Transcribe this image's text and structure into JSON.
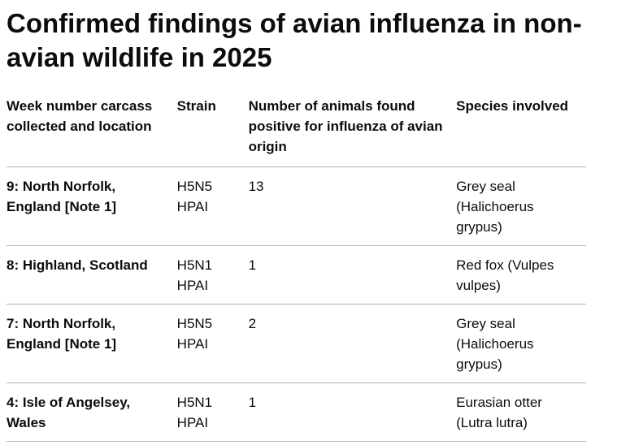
{
  "title": "Confirmed findings of avian influenza in non-avian wildlife in 2025",
  "table": {
    "headers": [
      "Week number carcass collected and location",
      "Strain",
      "Number of animals found positive for influenza of avian origin",
      "Species involved"
    ],
    "rows": [
      [
        "9: North Norfolk, England [Note 1]",
        "H5N5 HPAI",
        13,
        "Grey seal (Halichoerus grypus)"
      ],
      [
        "8: Highland, Scotland",
        "H5N1 HPAI",
        1,
        "Red fox (Vulpes vulpes)"
      ],
      [
        "7: North Norfolk, England [Note 1]",
        "H5N5 HPAI",
        2,
        "Grey seal (Halichoerus grypus)"
      ],
      [
        "4: Isle of Angelsey, Wales",
        "H5N1 HPAI",
        1,
        "Eurasian otter (Lutra lutra)"
      ]
    ]
  }
}
